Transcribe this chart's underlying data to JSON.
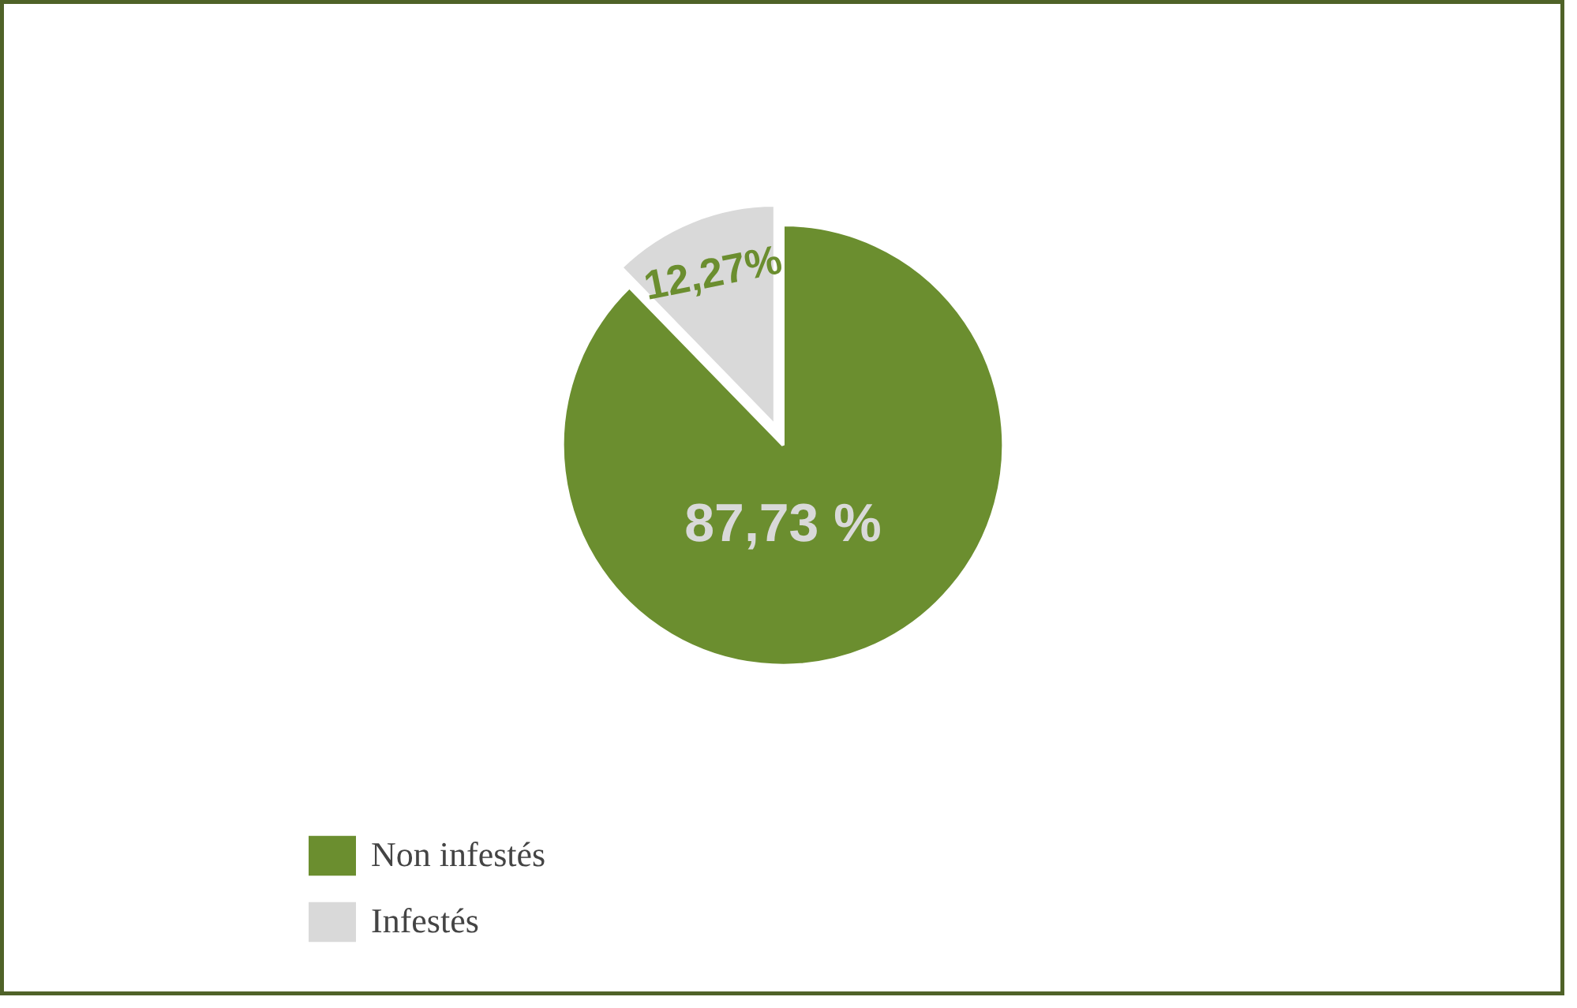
{
  "chart_data": {
    "type": "pie",
    "categories": [
      "Non infestés",
      "Infestés"
    ],
    "values": [
      87.73,
      12.27
    ],
    "colors": [
      "#6b8e2f",
      "#d9d9d9"
    ],
    "value_labels": [
      "87,73 %",
      "12,27%"
    ],
    "legend": "bottom left"
  }
}
